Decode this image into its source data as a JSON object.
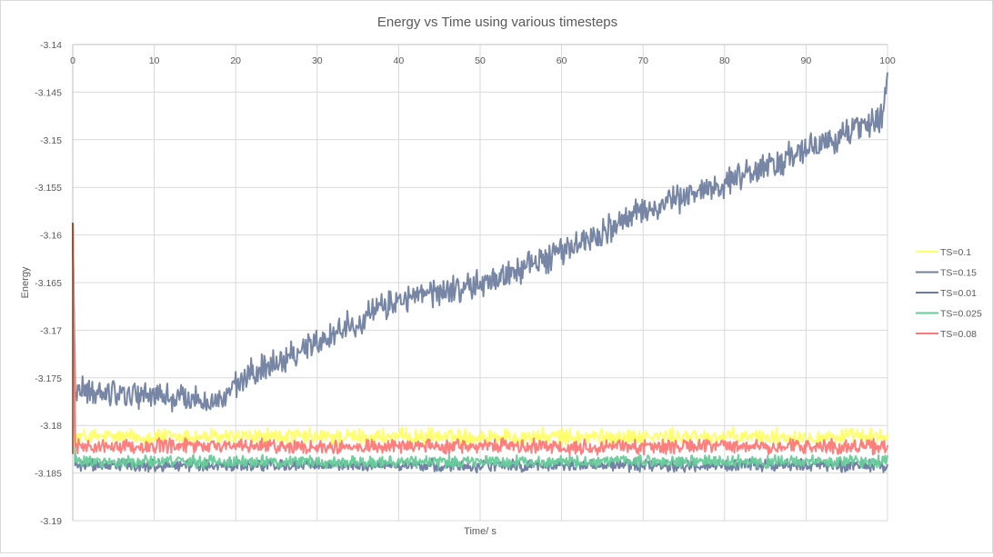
{
  "chart_data": {
    "type": "line",
    "title": "Energy vs Time using various timesteps",
    "xlabel": "Time/ s",
    "ylabel": "Energy",
    "xlim": [
      0,
      100
    ],
    "ylim": [
      -3.19,
      -3.14
    ],
    "x_ticks": [
      0,
      10,
      20,
      30,
      40,
      50,
      60,
      70,
      80,
      90,
      100
    ],
    "x_tick_labels": [
      "0",
      "10",
      "20",
      "30",
      "40",
      "50",
      "60",
      "70",
      "80",
      "90",
      "100"
    ],
    "y_ticks": [
      -3.14,
      -3.145,
      -3.15,
      -3.155,
      -3.16,
      -3.165,
      -3.17,
      -3.175,
      -3.18,
      -3.185,
      -3.19
    ],
    "y_tick_labels": [
      "-3.14",
      "-3.145",
      "-3.15",
      "-3.155",
      "-3.16",
      "-3.165",
      "-3.17",
      "-3.175",
      "-3.18",
      "-3.185",
      "-3.19"
    ],
    "x_axis_position": "top",
    "grid": true,
    "legend_position": "right",
    "series": [
      {
        "name": "TS=0.1",
        "color": "#FFFF66",
        "start_value": -3.1605,
        "trend": [
          [
            0,
            -3.1605
          ],
          [
            0.3,
            -3.1812
          ],
          [
            100,
            -3.1812
          ]
        ],
        "noise_amplitude": 0.0007,
        "description": "flat noisy band around -3.1812"
      },
      {
        "name": "TS=0.15",
        "color": "#7080A0",
        "start_value": -3.1587,
        "trend": [
          [
            0,
            -3.1587
          ],
          [
            0.3,
            -3.1765
          ],
          [
            5,
            -3.1765
          ],
          [
            18,
            -3.1775
          ],
          [
            22,
            -3.1745
          ],
          [
            30,
            -3.1712
          ],
          [
            40,
            -3.1668
          ],
          [
            50,
            -3.1652
          ],
          [
            60,
            -3.1618
          ],
          [
            70,
            -3.1575
          ],
          [
            80,
            -3.1545
          ],
          [
            90,
            -3.1512
          ],
          [
            99.5,
            -3.1475
          ],
          [
            100,
            -3.143
          ]
        ],
        "noise_amplitude": 0.0012,
        "description": "noisy line drifting upward from about -3.176 to about -3.147"
      },
      {
        "name": "TS=0.01",
        "color": "#6A7AA0",
        "start_value": -3.1587,
        "trend": [
          [
            0,
            -3.1587
          ],
          [
            0.3,
            -3.1842
          ],
          [
            100,
            -3.1842
          ]
        ],
        "noise_amplitude": 0.0005,
        "description": "flat noisy band around -3.1842"
      },
      {
        "name": "TS=0.025",
        "color": "#66CC99",
        "start_value": -3.1587,
        "trend": [
          [
            0,
            -3.1587
          ],
          [
            0.3,
            -3.1838
          ],
          [
            100,
            -3.1838
          ]
        ],
        "noise_amplitude": 0.0005,
        "description": "flat noisy band around -3.1838"
      },
      {
        "name": "TS=0.08",
        "color": "#FF7777",
        "start_value": -3.1587,
        "trend": [
          [
            0,
            -3.1587
          ],
          [
            0.3,
            -3.1822
          ],
          [
            100,
            -3.1822
          ]
        ],
        "noise_amplitude": 0.0006,
        "description": "flat noisy band around -3.1822"
      }
    ]
  }
}
